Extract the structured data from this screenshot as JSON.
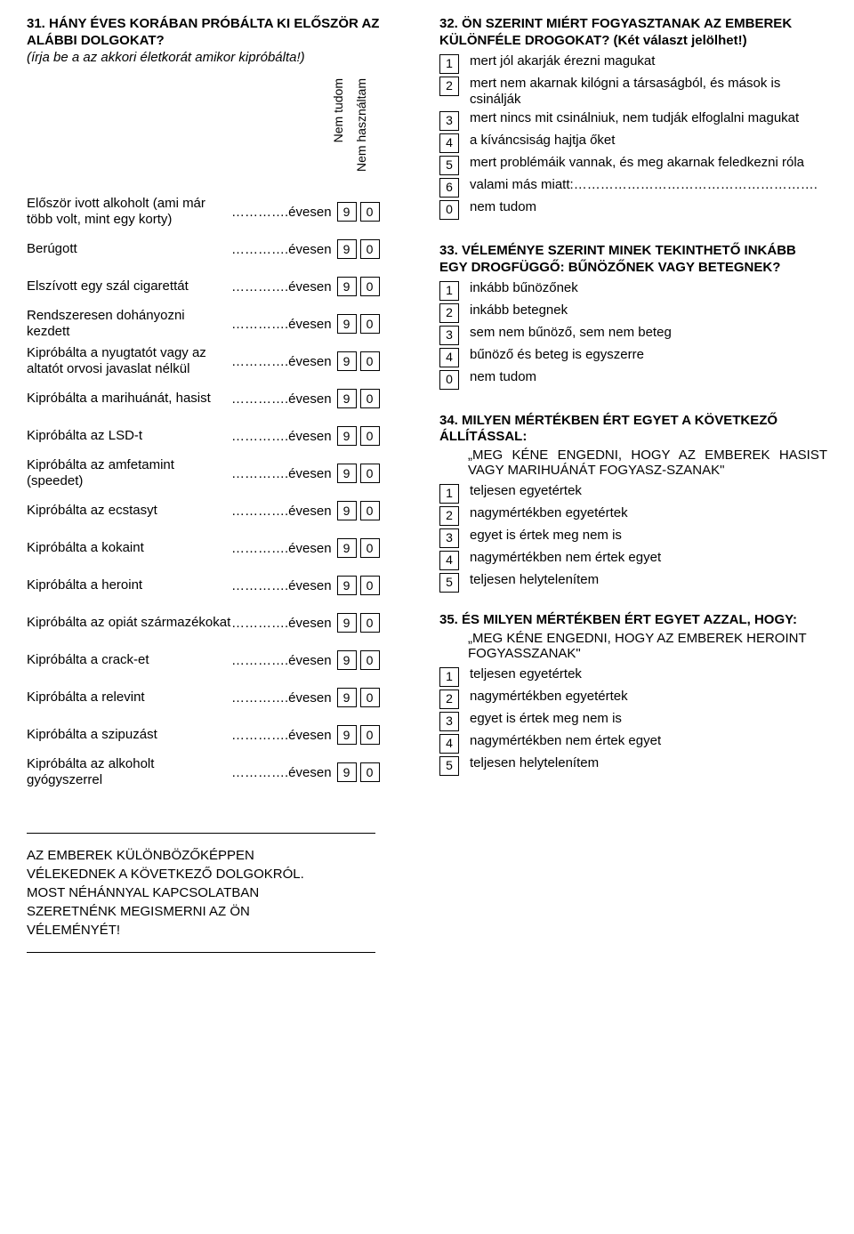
{
  "q31": {
    "number": "31.",
    "title_a": "HÁNY ÉVES KORÁBAN PRÓBÁLTA KI ELŐSZÖR AZ ALÁBBI DOLGOKAT?",
    "subtitle": "(írja be a az akkori életkorát amikor kipróbálta!)",
    "rot1": "Nem tudom",
    "rot2": "Nem használtam",
    "fill_label": "………….évesen",
    "box9": "9",
    "box0": "0",
    "rows": [
      "Először ivott alkoholt (ami már több volt, mint egy korty)",
      "Berúgott",
      "Elszívott egy szál cigarettát",
      "Rendszeresen dohányozni kezdett",
      "Kipróbálta a nyugtatót vagy az altatót orvosi javaslat nélkül",
      "Kipróbálta a marihuánát, hasist",
      "Kipróbálta az LSD-t",
      "Kipróbálta az amfetamint (speedet)",
      "Kipróbálta az ecstasyt",
      "Kipróbálta a kokaint",
      "Kipróbálta a heroint",
      "Kipróbálta az opiát származékokat",
      "Kipróbálta a crack-et",
      "Kipróbálta a relevint",
      "Kipróbálta a szipuzást",
      "Kipróbálta az alkoholt gyógyszerrel"
    ]
  },
  "bottom_left": {
    "line1": "AZ EMBEREK KÜLÖNBÖZŐKÉPPEN",
    "line2": "VÉLEKEDNEK A KÖVETKEZŐ DOLGOKRÓL.",
    "line3": "MOST NÉHÁNNYAL KAPCSOLATBAN",
    "line4": "SZERETNÉNK MEGISMERNI AZ ÖN",
    "line5": "VÉLEMÉNYÉT!"
  },
  "q32": {
    "number": "32.",
    "title": "ÖN SZERINT MIÉRT FOGYASZTANAK AZ EMBEREK KÜLÖNFÉLE DROGOKAT?",
    "note": " (Két választ jelölhet!)",
    "opts": [
      {
        "n": "1",
        "t": "mert jól akarják érezni magukat"
      },
      {
        "n": "2",
        "t": "mert nem akarnak kilógni a társaságból, és mások is csinálják"
      },
      {
        "n": "3",
        "t": "mert nincs mit csinálniuk, nem tudják elfoglalni magukat"
      },
      {
        "n": "4",
        "t": "a kíváncsiság hajtja őket"
      },
      {
        "n": "5",
        "t": "mert problémáik vannak, és meg akarnak feledkezni róla"
      },
      {
        "n": "6",
        "t": "valami más miatt:………………………………………………."
      },
      {
        "n": "0",
        "t": "nem tudom"
      }
    ]
  },
  "q33": {
    "number": "33.",
    "title": "VÉLEMÉNYE SZERINT MINEK TEKINTHETŐ INKÁBB EGY DROGFÜGGŐ: BŰNÖZŐNEK VAGY BETEGNEK?",
    "opts": [
      {
        "n": "1",
        "t": "inkább bűnözőnek"
      },
      {
        "n": "2",
        "t": "inkább betegnek"
      },
      {
        "n": "3",
        "t": "sem nem bűnöző, sem nem beteg"
      },
      {
        "n": "4",
        "t": "bűnöző és beteg is egyszerre"
      },
      {
        "n": "0",
        "t": "nem tudom"
      }
    ]
  },
  "q34": {
    "number": "34.",
    "title": "MILYEN MÉRTÉKBEN ÉRT EGYET A KÖVETKEZŐ ÁLLÍTÁSSAL:",
    "quote": "„MEG KÉNE ENGEDNI, HOGY AZ EMBEREK HASIST VAGY MARIHUÁNÁT FOGYASZ-SZANAK\"",
    "opts": [
      {
        "n": "1",
        "t": "teljesen egyetértek"
      },
      {
        "n": "2",
        "t": "nagymértékben egyetértek"
      },
      {
        "n": "3",
        "t": "egyet is értek meg nem is"
      },
      {
        "n": "4",
        "t": "nagymértékben nem értek egyet"
      },
      {
        "n": "5",
        "t": "teljesen helytelenítem"
      }
    ]
  },
  "q35": {
    "number": "35.",
    "title": "ÉS MILYEN MÉRTÉKBEN ÉRT EGYET AZZAL, HOGY:",
    "quote": "„MEG KÉNE ENGEDNI, HOGY AZ EMBEREK HEROINT FOGYASSZANAK\"",
    "opts": [
      {
        "n": "1",
        "t": "teljesen egyetértek"
      },
      {
        "n": "2",
        "t": "nagymértékben egyetértek"
      },
      {
        "n": "3",
        "t": "egyet is értek meg nem is"
      },
      {
        "n": "4",
        "t": "nagymértékben nem értek egyet"
      },
      {
        "n": "5",
        "t": "teljesen helytelenítem"
      }
    ]
  }
}
